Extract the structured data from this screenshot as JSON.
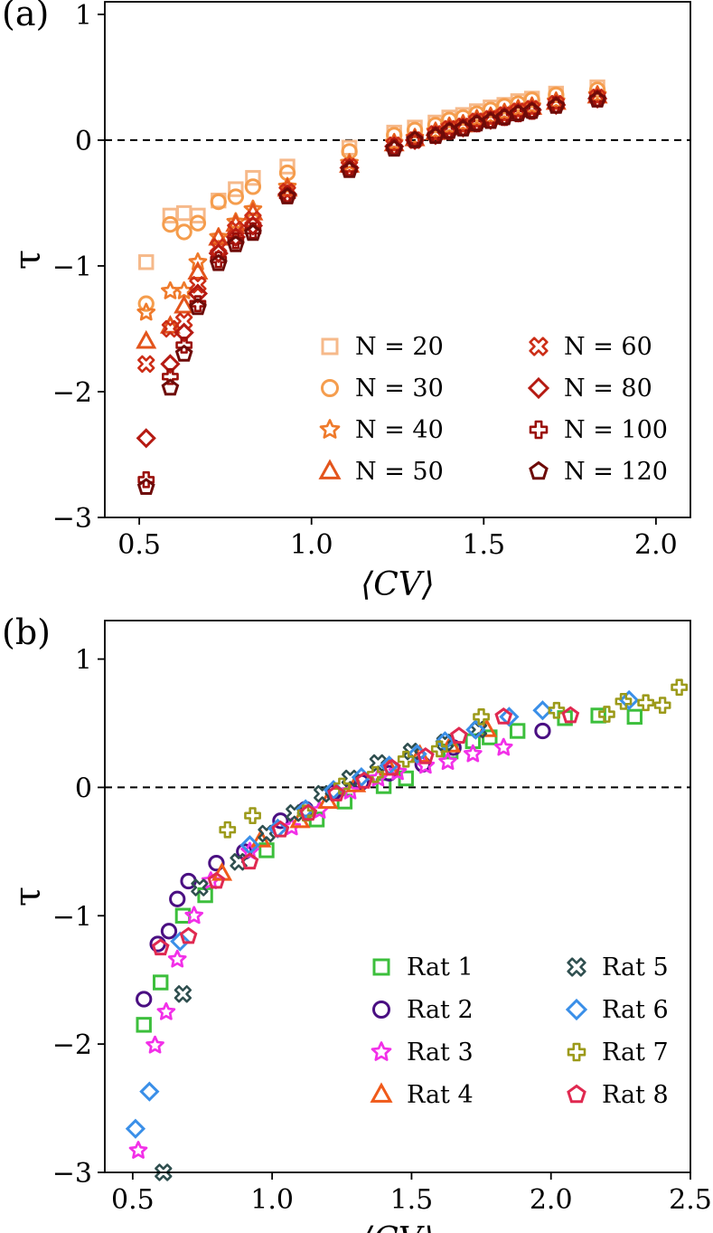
{
  "chart_data": [
    {
      "type": "scatter",
      "panel_label": "(a)",
      "xlabel": "⟨CV⟩",
      "ylabel": "τ",
      "xlim": [
        0.4,
        2.1
      ],
      "ylim": [
        -3,
        1.1
      ],
      "xticks": [
        "0.5",
        "1.0",
        "1.5",
        "2.0"
      ],
      "xtick_values": [
        0.5,
        1.0,
        1.5,
        2.0
      ],
      "yticks": [
        "−3",
        "−2",
        "−1",
        "0",
        "1"
      ],
      "ytick_values": [
        -3,
        -2,
        -1,
        0,
        1
      ],
      "reference_line": 0,
      "legend_placement": "lower-right",
      "legend_columns": 2,
      "series": [
        {
          "name": "N = 20",
          "marker": "square",
          "color": "#f6b98a",
          "x": [
            0.52,
            0.59,
            0.63,
            0.67,
            0.73,
            0.78,
            0.83,
            0.93,
            1.11,
            1.24,
            1.3,
            1.36,
            1.4,
            1.44,
            1.48,
            1.52,
            1.56,
            1.6,
            1.64,
            1.71,
            1.83
          ],
          "y": [
            -0.97,
            -0.6,
            -0.58,
            -0.6,
            -0.48,
            -0.39,
            -0.3,
            -0.21,
            -0.06,
            0.06,
            0.1,
            0.14,
            0.18,
            0.2,
            0.23,
            0.26,
            0.28,
            0.31,
            0.33,
            0.37,
            0.42
          ]
        },
        {
          "name": "N = 30",
          "marker": "circle",
          "color": "#f59d4d",
          "x": [
            0.52,
            0.59,
            0.63,
            0.67,
            0.73,
            0.78,
            0.83,
            0.93,
            1.11,
            1.24,
            1.3,
            1.36,
            1.4,
            1.44,
            1.48,
            1.52,
            1.56,
            1.6,
            1.64,
            1.71,
            1.83
          ],
          "y": [
            -1.3,
            -0.67,
            -0.73,
            -0.66,
            -0.49,
            -0.45,
            -0.37,
            -0.26,
            -0.09,
            0.04,
            0.08,
            0.12,
            0.16,
            0.18,
            0.21,
            0.24,
            0.27,
            0.29,
            0.32,
            0.36,
            0.4
          ]
        },
        {
          "name": "N = 40",
          "marker": "star",
          "color": "#ef7a2b",
          "x": [
            0.52,
            0.59,
            0.63,
            0.67,
            0.73,
            0.78,
            0.83,
            0.93,
            1.11,
            1.24,
            1.3,
            1.36,
            1.4,
            1.44,
            1.48,
            1.52,
            1.56,
            1.6,
            1.64,
            1.71,
            1.83
          ],
          "y": [
            -1.37,
            -1.2,
            -1.2,
            -0.97,
            -0.77,
            -0.65,
            -0.55,
            -0.37,
            -0.18,
            -0.02,
            0.02,
            0.07,
            0.11,
            0.13,
            0.17,
            0.19,
            0.22,
            0.25,
            0.27,
            0.31,
            0.36
          ]
        },
        {
          "name": "N = 50",
          "marker": "triangle",
          "color": "#e3541c",
          "x": [
            0.52,
            0.59,
            0.63,
            0.67,
            0.73,
            0.78,
            0.83,
            0.93,
            1.11,
            1.24,
            1.3,
            1.36,
            1.4,
            1.44,
            1.48,
            1.52,
            1.56,
            1.6,
            1.64,
            1.71,
            1.83
          ],
          "y": [
            -1.6,
            -1.48,
            -1.32,
            -1.05,
            -0.78,
            -0.67,
            -0.58,
            -0.39,
            -0.2,
            -0.03,
            0.01,
            0.06,
            0.1,
            0.12,
            0.16,
            0.18,
            0.21,
            0.24,
            0.26,
            0.3,
            0.35
          ]
        },
        {
          "name": "N = 60",
          "marker": "x",
          "color": "#cc2d16",
          "x": [
            0.52,
            0.59,
            0.63,
            0.67,
            0.73,
            0.78,
            0.83,
            0.93,
            1.11,
            1.24,
            1.3,
            1.36,
            1.4,
            1.44,
            1.48,
            1.52,
            1.56,
            1.6,
            1.64,
            1.71,
            1.83
          ],
          "y": [
            -1.78,
            -1.5,
            -1.44,
            -1.15,
            -0.85,
            -0.71,
            -0.63,
            -0.41,
            -0.21,
            -0.04,
            0.0,
            0.05,
            0.09,
            0.11,
            0.15,
            0.17,
            0.2,
            0.23,
            0.25,
            0.29,
            0.34
          ]
        },
        {
          "name": "N = 80",
          "marker": "diamond",
          "color": "#b51a12",
          "x": [
            0.52,
            0.59,
            0.63,
            0.67,
            0.73,
            0.78,
            0.83,
            0.93,
            1.11,
            1.24,
            1.3,
            1.36,
            1.4,
            1.44,
            1.48,
            1.52,
            1.56,
            1.6,
            1.64,
            1.71,
            1.83
          ],
          "y": [
            -2.37,
            -1.78,
            -1.53,
            -1.22,
            -0.9,
            -0.77,
            -0.68,
            -0.43,
            -0.22,
            -0.05,
            0.0,
            0.04,
            0.08,
            0.1,
            0.14,
            0.16,
            0.19,
            0.22,
            0.24,
            0.28,
            0.33
          ]
        },
        {
          "name": "N = 100",
          "marker": "plus",
          "color": "#9a0f0a",
          "x": [
            0.52,
            0.59,
            0.63,
            0.67,
            0.73,
            0.78,
            0.83,
            0.93,
            1.11,
            1.24,
            1.3,
            1.36,
            1.4,
            1.44,
            1.48,
            1.52,
            1.56,
            1.6,
            1.64,
            1.71,
            1.83
          ],
          "y": [
            -2.7,
            -1.88,
            -1.63,
            -1.3,
            -0.95,
            -0.8,
            -0.72,
            -0.44,
            -0.23,
            -0.06,
            0.0,
            0.04,
            0.07,
            0.1,
            0.13,
            0.16,
            0.18,
            0.21,
            0.23,
            0.28,
            0.33
          ]
        },
        {
          "name": "N = 120",
          "marker": "pentagon",
          "color": "#6e0b08",
          "x": [
            0.52,
            0.59,
            0.63,
            0.67,
            0.73,
            0.78,
            0.83,
            0.93,
            1.11,
            1.24,
            1.3,
            1.36,
            1.4,
            1.44,
            1.48,
            1.52,
            1.56,
            1.6,
            1.64,
            1.71,
            1.83
          ],
          "y": [
            -2.76,
            -1.97,
            -1.7,
            -1.33,
            -0.98,
            -0.83,
            -0.74,
            -0.45,
            -0.24,
            -0.07,
            0.0,
            0.03,
            0.07,
            0.09,
            0.13,
            0.15,
            0.18,
            0.21,
            0.23,
            0.27,
            0.32
          ]
        }
      ]
    },
    {
      "type": "scatter",
      "panel_label": "(b)",
      "xlabel": "⟨CV⟩",
      "ylabel": "τ",
      "xlim": [
        0.4,
        2.5
      ],
      "ylim": [
        -3,
        1.3
      ],
      "xticks": [
        "0.5",
        "1.0",
        "1.5",
        "2.0",
        "2.5"
      ],
      "xtick_values": [
        0.5,
        1.0,
        1.5,
        2.0,
        2.5
      ],
      "yticks": [
        "−3",
        "−2",
        "−1",
        "0",
        "1"
      ],
      "ytick_values": [
        -3,
        -2,
        -1,
        0,
        1
      ],
      "reference_line": 0,
      "legend_placement": "lower-right",
      "legend_columns": 2,
      "series": [
        {
          "name": "Rat 1",
          "marker": "square",
          "color": "#3cbf3c",
          "x": [
            0.54,
            0.6,
            0.68,
            0.76,
            0.98,
            1.16,
            1.26,
            1.4,
            1.48,
            1.64,
            1.72,
            1.78,
            1.88,
            2.05,
            2.17,
            2.3
          ],
          "y": [
            -1.85,
            -1.52,
            -1.0,
            -0.84,
            -0.49,
            -0.25,
            -0.11,
            0.01,
            0.07,
            0.28,
            0.36,
            0.39,
            0.44,
            0.54,
            0.56,
            0.55
          ]
        },
        {
          "name": "Rat 2",
          "marker": "circle",
          "color": "#4a0f82",
          "x": [
            0.54,
            0.59,
            0.63,
            0.66,
            0.7,
            0.8,
            0.9,
            1.03,
            1.12,
            1.22,
            1.32,
            1.42,
            1.54,
            1.65,
            1.97
          ],
          "y": [
            -1.65,
            -1.22,
            -1.12,
            -0.87,
            -0.73,
            -0.59,
            -0.5,
            -0.26,
            -0.17,
            -0.04,
            0.04,
            0.11,
            0.18,
            0.31,
            0.44
          ]
        },
        {
          "name": "Rat 3",
          "marker": "star",
          "color": "#f230e8",
          "x": [
            0.52,
            0.58,
            0.62,
            0.66,
            0.72,
            0.78,
            0.92,
            1.07,
            1.17,
            1.28,
            1.38,
            1.45,
            1.55,
            1.63,
            1.72,
            1.83
          ],
          "y": [
            -2.83,
            -2.01,
            -1.75,
            -1.34,
            -1.0,
            -0.73,
            -0.5,
            -0.31,
            -0.18,
            -0.03,
            0.07,
            0.12,
            0.17,
            0.2,
            0.26,
            0.31
          ]
        },
        {
          "name": "Rat 4",
          "marker": "triangle",
          "color": "#f05a1a",
          "x": [
            0.82,
            0.96,
            1.1,
            1.2,
            1.3,
            1.42,
            1.53,
            1.64,
            1.77
          ],
          "y": [
            -0.67,
            -0.41,
            -0.26,
            -0.11,
            0.02,
            0.15,
            0.25,
            0.33,
            0.45
          ]
        },
        {
          "name": "Rat 5",
          "marker": "x",
          "color": "#2f4f4f",
          "x": [
            0.61,
            0.68,
            0.74,
            0.88,
            0.98,
            1.08,
            1.18,
            1.28,
            1.38,
            1.5,
            1.62,
            1.74
          ],
          "y": [
            -3.0,
            -1.61,
            -0.78,
            -0.58,
            -0.36,
            -0.2,
            -0.05,
            0.07,
            0.19,
            0.28,
            0.35,
            0.45
          ]
        },
        {
          "name": "Rat 6",
          "marker": "diamond",
          "color": "#3a8fe8",
          "x": [
            0.51,
            0.56,
            0.67,
            0.92,
            1.02,
            1.12,
            1.22,
            1.32,
            1.42,
            1.52,
            1.62,
            1.73,
            1.85,
            1.97,
            2.28
          ],
          "y": [
            -2.66,
            -2.37,
            -1.2,
            -0.45,
            -0.32,
            -0.17,
            -0.02,
            0.08,
            0.17,
            0.26,
            0.36,
            0.45,
            0.55,
            0.6,
            0.68
          ]
        },
        {
          "name": "Rat 7",
          "marker": "plus",
          "color": "#9c9a1a",
          "x": [
            0.84,
            0.93,
            1.12,
            1.25,
            1.37,
            1.48,
            1.6,
            1.75,
            2.02,
            2.2,
            2.26,
            2.34,
            2.4,
            2.46
          ],
          "y": [
            -0.33,
            -0.22,
            -0.2,
            0.01,
            0.1,
            0.22,
            0.3,
            0.55,
            0.6,
            0.57,
            0.67,
            0.66,
            0.64,
            0.78
          ]
        },
        {
          "name": "Rat 8",
          "marker": "pentagon",
          "color": "#e02950",
          "x": [
            0.6,
            0.7,
            0.8,
            0.92,
            1.03,
            1.13,
            1.23,
            1.33,
            1.43,
            1.55,
            1.67,
            1.83,
            2.07
          ],
          "y": [
            -1.25,
            -1.16,
            -0.73,
            -0.58,
            -0.33,
            -0.2,
            -0.05,
            0.05,
            0.15,
            0.24,
            0.4,
            0.55,
            0.56
          ]
        }
      ]
    }
  ]
}
